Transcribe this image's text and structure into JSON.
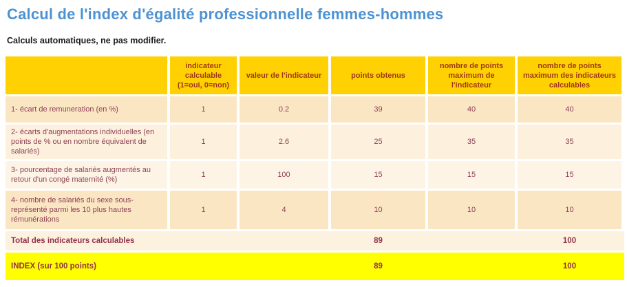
{
  "page": {
    "title": "Calcul de l'index d'égalité professionnelle femmes-hommes",
    "subtitle": "Calculs automatiques, ne pas modifier."
  },
  "colors": {
    "title_blue": "#4d92d2",
    "header_bg": "#ffd103",
    "header_text": "#9d3a14",
    "body_text": "#8e4156",
    "strong_text": "#93304a",
    "row_dark": "#fae6c3",
    "row_light": "#fdf1de",
    "row_light2": "#fdf4e6",
    "total_bg": "#fdf2e0",
    "index_bg": "#ffff00",
    "page_bg": "#ffffff"
  },
  "table": {
    "columns": [
      "",
      "indicateur calculable (1=oui, 0=non)",
      "valeur de l'indicateur",
      "points obtenus",
      "nombre de points maximum de l'indicateur",
      "nombre de points maximum des indicateurs calculables"
    ],
    "rows": [
      {
        "label": "1- écart de remuneration (en %)",
        "indicateur_calculable": "1",
        "valeur_indicateur": "0.2",
        "points_obtenus": "39",
        "points_max_indicateur": "40",
        "points_max_calculables": "40"
      },
      {
        "label": "2- écarts d'augmentations individuelles (en points de % ou en nombre équivalent de salariés)",
        "indicateur_calculable": "1",
        "valeur_indicateur": "2.6",
        "points_obtenus": "25",
        "points_max_indicateur": "35",
        "points_max_calculables": "35"
      },
      {
        "label": "3- pourcentage de salariés augmentés au retour d'un congé maternité (%)",
        "indicateur_calculable": "1",
        "valeur_indicateur": "100",
        "points_obtenus": "15",
        "points_max_indicateur": "15",
        "points_max_calculables": "15"
      },
      {
        "label": "4- nombre de salariés du sexe sous-représenté parmi les 10 plus hautes rémunérations",
        "indicateur_calculable": "1",
        "valeur_indicateur": "4",
        "points_obtenus": "10",
        "points_max_indicateur": "10",
        "points_max_calculables": "10"
      }
    ],
    "total_row": {
      "label": "Total des indicateurs calculables",
      "points_obtenus": "89",
      "points_max_calculables": "100"
    },
    "index_row": {
      "label": "INDEX (sur 100 points)",
      "points_obtenus": "89",
      "points_max_calculables": "100"
    }
  }
}
